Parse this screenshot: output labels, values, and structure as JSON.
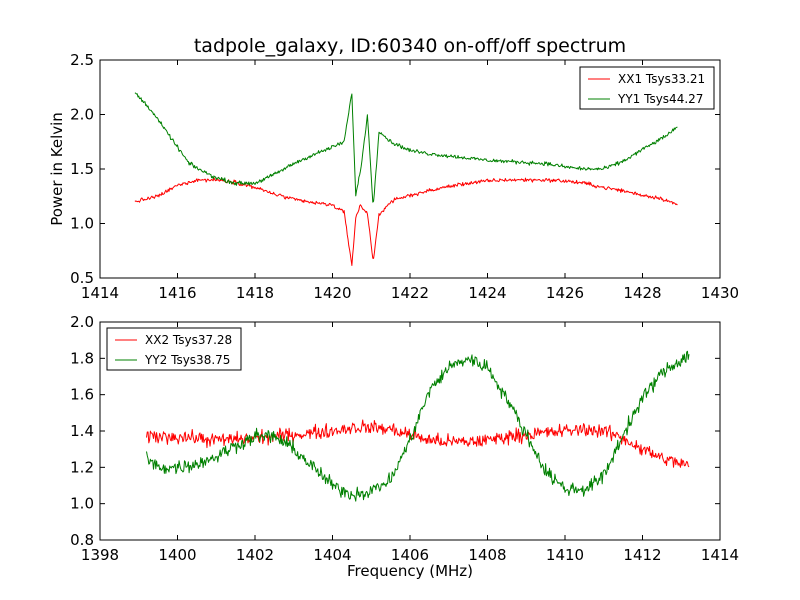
{
  "figure": {
    "title": "tadpole_galaxy, ID:60340 on-off/off spectrum"
  },
  "colors": {
    "red": "#ff0000",
    "green": "#008000"
  },
  "chart_data": [
    {
      "type": "line",
      "title": "tadpole_galaxy, ID:60340 on-off/off spectrum",
      "xlabel": "",
      "ylabel": "Power in Kelvin",
      "xlim": [
        1414,
        1430
      ],
      "ylim": [
        0.5,
        2.5
      ],
      "xticks": [
        1414,
        1416,
        1418,
        1420,
        1422,
        1424,
        1426,
        1428,
        1430
      ],
      "yticks": [
        0.5,
        1.0,
        1.5,
        2.0,
        2.5
      ],
      "xtick_labels": [
        "1414",
        "1416",
        "1418",
        "1420",
        "1422",
        "1424",
        "1426",
        "1428",
        "1430"
      ],
      "ytick_labels": [
        "0.5",
        "1.0",
        "1.5",
        "2.0",
        "2.5"
      ],
      "grid": false,
      "legend": "top-right",
      "series": [
        {
          "name": "XX1 Tsys33.21",
          "color": "#ff0000",
          "x": [
            1414.9,
            1415.5,
            1416.0,
            1416.5,
            1417.0,
            1417.5,
            1418.0,
            1418.5,
            1419.0,
            1419.5,
            1420.0,
            1420.3,
            1420.5,
            1420.6,
            1420.7,
            1420.9,
            1421.05,
            1421.2,
            1421.5,
            1422.0,
            1422.5,
            1423.0,
            1423.5,
            1424.0,
            1424.5,
            1425.0,
            1425.5,
            1426.0,
            1426.5,
            1427.0,
            1427.5,
            1428.0,
            1428.5,
            1428.9
          ],
          "y": [
            1.2,
            1.25,
            1.35,
            1.4,
            1.4,
            1.38,
            1.33,
            1.27,
            1.22,
            1.19,
            1.17,
            1.1,
            0.62,
            1.05,
            1.16,
            1.1,
            0.65,
            1.08,
            1.2,
            1.26,
            1.3,
            1.34,
            1.37,
            1.39,
            1.4,
            1.4,
            1.4,
            1.39,
            1.37,
            1.33,
            1.3,
            1.26,
            1.23,
            1.17
          ]
        },
        {
          "name": "YY1 Tsys44.27",
          "color": "#008000",
          "x": [
            1414.9,
            1415.3,
            1415.7,
            1416.0,
            1416.3,
            1416.7,
            1417.0,
            1417.5,
            1418.0,
            1418.5,
            1419.0,
            1419.5,
            1420.0,
            1420.3,
            1420.5,
            1420.6,
            1420.75,
            1420.9,
            1421.05,
            1421.2,
            1421.5,
            1422.0,
            1422.5,
            1423.0,
            1423.5,
            1424.0,
            1424.5,
            1425.0,
            1425.5,
            1426.0,
            1426.5,
            1427.0,
            1427.5,
            1428.0,
            1428.5,
            1428.9
          ],
          "y": [
            2.2,
            2.05,
            1.85,
            1.7,
            1.55,
            1.47,
            1.42,
            1.37,
            1.37,
            1.45,
            1.55,
            1.63,
            1.7,
            1.75,
            2.2,
            1.25,
            1.55,
            2.0,
            1.15,
            1.85,
            1.75,
            1.67,
            1.64,
            1.62,
            1.6,
            1.58,
            1.57,
            1.56,
            1.55,
            1.52,
            1.5,
            1.5,
            1.57,
            1.68,
            1.78,
            1.88
          ]
        }
      ]
    },
    {
      "type": "line",
      "title": "",
      "xlabel": "Frequency (MHz)",
      "ylabel": "",
      "xlim": [
        1398,
        1414
      ],
      "ylim": [
        0.8,
        2.0
      ],
      "xticks": [
        1398,
        1400,
        1402,
        1404,
        1406,
        1408,
        1410,
        1412,
        1414
      ],
      "yticks": [
        0.8,
        1.0,
        1.2,
        1.4,
        1.6,
        1.8,
        2.0
      ],
      "xtick_labels": [
        "1398",
        "1400",
        "1402",
        "1404",
        "1406",
        "1408",
        "1410",
        "1412",
        "1414"
      ],
      "ytick_labels": [
        "0.8",
        "1.0",
        "1.2",
        "1.4",
        "1.6",
        "1.8",
        "2.0"
      ],
      "grid": false,
      "legend": "top-left",
      "series": [
        {
          "name": "XX2 Tsys37.28",
          "color": "#ff0000",
          "x": [
            1399.2,
            1400.0,
            1401.0,
            1402.0,
            1403.0,
            1404.0,
            1404.5,
            1405.0,
            1405.5,
            1406.0,
            1406.5,
            1407.0,
            1407.5,
            1408.0,
            1408.5,
            1409.0,
            1409.5,
            1410.0,
            1410.5,
            1411.0,
            1411.5,
            1412.0,
            1412.5,
            1413.2
          ],
          "y": [
            1.37,
            1.37,
            1.35,
            1.36,
            1.38,
            1.4,
            1.42,
            1.42,
            1.41,
            1.38,
            1.35,
            1.34,
            1.34,
            1.35,
            1.37,
            1.38,
            1.39,
            1.4,
            1.41,
            1.4,
            1.36,
            1.3,
            1.25,
            1.21
          ]
        },
        {
          "name": "YY2 Tsys38.75",
          "color": "#008000",
          "x": [
            1399.2,
            1399.5,
            1400.0,
            1400.5,
            1401.0,
            1401.5,
            1402.0,
            1402.5,
            1403.0,
            1403.5,
            1404.0,
            1404.5,
            1405.0,
            1405.5,
            1406.0,
            1406.5,
            1407.0,
            1407.5,
            1408.0,
            1408.5,
            1409.0,
            1409.5,
            1410.0,
            1410.5,
            1411.0,
            1411.5,
            1412.0,
            1412.5,
            1413.2
          ],
          "y": [
            1.25,
            1.2,
            1.2,
            1.22,
            1.26,
            1.32,
            1.37,
            1.37,
            1.3,
            1.2,
            1.1,
            1.05,
            1.07,
            1.13,
            1.35,
            1.62,
            1.75,
            1.8,
            1.75,
            1.58,
            1.38,
            1.18,
            1.08,
            1.08,
            1.15,
            1.38,
            1.58,
            1.72,
            1.82
          ]
        }
      ]
    }
  ]
}
